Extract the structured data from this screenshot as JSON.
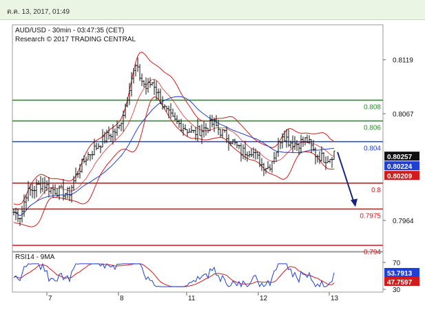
{
  "header": {
    "timestamp": "ต.ค. 13, 2017, 01:49"
  },
  "chart_data": {
    "type": "line",
    "title": "AUD/USD - 30min - 03:47:35 (CET)",
    "subtitle": "Research © 2017 TRADING CENTRAL",
    "x_ticks": [
      "7",
      "8",
      "11",
      "12",
      "13"
    ],
    "price_axis": {
      "ticks": [
        "0.8119",
        "0.8067",
        "0.7964"
      ]
    },
    "levels": [
      {
        "label": "0.808",
        "color": "#2e8b2e"
      },
      {
        "label": "0.806",
        "color": "#2e8b2e"
      },
      {
        "label": "0.804",
        "color": "#1f3fd6"
      },
      {
        "label": "0.8",
        "color": "#d41a1a"
      },
      {
        "label": "0.7975",
        "color": "#d41a1a"
      },
      {
        "label": "0.794",
        "color": "#d41a1a"
      }
    ],
    "price_badges": [
      {
        "label": "0.80257",
        "bg": "#111111",
        "fg": "#ffffff"
      },
      {
        "label": "0.80224",
        "bg": "#1f3fd6",
        "fg": "#ffffff"
      },
      {
        "label": "0.80209",
        "bg": "#d41a1a",
        "fg": "#ffffff"
      }
    ],
    "rsi": {
      "title": "RSI14 - 9MA",
      "ticks": [
        "70",
        "30"
      ],
      "badges": [
        {
          "label": "53.7913",
          "bg": "#1f3fd6",
          "fg": "#ffffff"
        },
        {
          "label": "47.7597",
          "bg": "#d41a1a",
          "fg": "#ffffff"
        }
      ]
    }
  }
}
